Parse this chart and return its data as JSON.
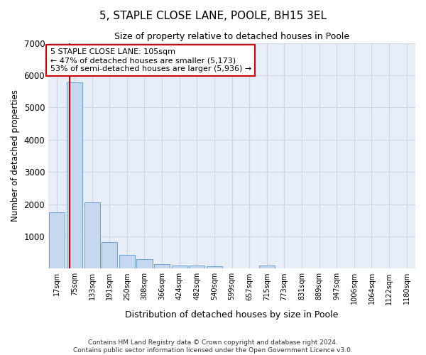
{
  "title": "5, STAPLE CLOSE LANE, POOLE, BH15 3EL",
  "subtitle": "Size of property relative to detached houses in Poole",
  "xlabel": "Distribution of detached houses by size in Poole",
  "ylabel": "Number of detached properties",
  "bar_labels": [
    "17sqm",
    "75sqm",
    "133sqm",
    "191sqm",
    "250sqm",
    "308sqm",
    "366sqm",
    "424sqm",
    "482sqm",
    "540sqm",
    "599sqm",
    "657sqm",
    "715sqm",
    "773sqm",
    "831sqm",
    "889sqm",
    "947sqm",
    "1006sqm",
    "1064sqm",
    "1122sqm",
    "1180sqm"
  ],
  "bar_values": [
    1750,
    5780,
    2060,
    820,
    430,
    300,
    130,
    105,
    95,
    80,
    0,
    0,
    95,
    0,
    0,
    0,
    0,
    0,
    0,
    0,
    0
  ],
  "bar_color": "#c5d8ef",
  "bar_edge_color": "#6ca3d0",
  "grid_color": "#ccd6e6",
  "bg_color": "#e8eef8",
  "annotation_text": "5 STAPLE CLOSE LANE: 105sqm\n← 47% of detached houses are smaller (5,173)\n53% of semi-detached houses are larger (5,936) →",
  "vline_x_bar": 1,
  "vline_color": "#cc0000",
  "annotation_box_color": "#ffffff",
  "annotation_box_edge": "#cc0000",
  "ylim": [
    0,
    7000
  ],
  "yticks": [
    0,
    1000,
    2000,
    3000,
    4000,
    5000,
    6000,
    7000
  ],
  "footer_line1": "Contains HM Land Registry data © Crown copyright and database right 2024.",
  "footer_line2": "Contains public sector information licensed under the Open Government Licence v3.0."
}
